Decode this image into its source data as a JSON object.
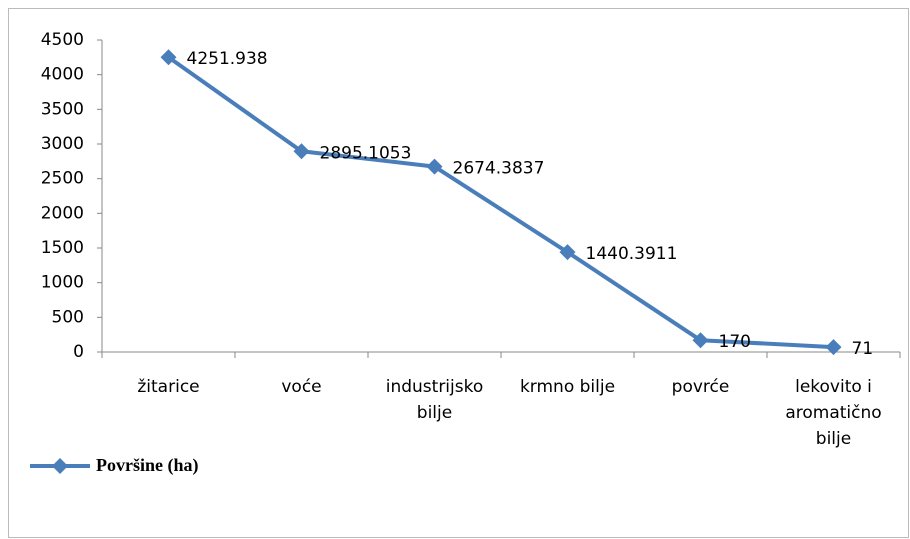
{
  "chart_data": {
    "type": "line",
    "categories": [
      "žitarice",
      "voće",
      "industrijsko bilje",
      "krmno bilje",
      "povrće",
      "lekovito i aromatično bilje"
    ],
    "series": [
      {
        "name": "Površine (ha)",
        "color": "#4a7ebb",
        "values": [
          4251.938,
          2895.1053,
          2674.3837,
          1440.3911,
          170,
          71
        ]
      }
    ],
    "ylim": [
      0,
      4500
    ],
    "yticks": [
      0,
      500,
      1000,
      1500,
      2000,
      2500,
      3000,
      3500,
      4000,
      4500
    ],
    "grid": false,
    "legend": "bottom-left"
  }
}
